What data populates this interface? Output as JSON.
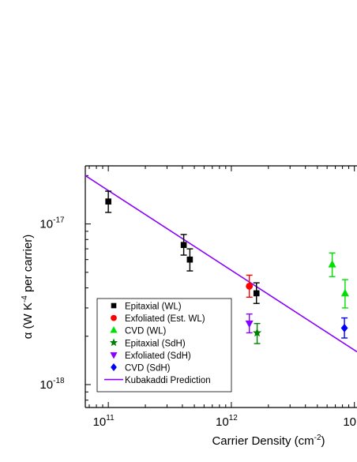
{
  "chart_data": {
    "type": "scatter",
    "xlabel": "Carrier Density (cm",
    "xlabel_sup": "-2",
    "xlabel_end": ")",
    "ylabel_pre": "α (W K",
    "ylabel_sup": "-4",
    "ylabel_post": " per carrier)",
    "x_scale": "log",
    "y_scale": "log",
    "xlim": [
      65000000000.0,
      10500000000000.0
    ],
    "ylim": [
      7.2e-19,
      2.3e-17
    ],
    "x_ticks": [
      {
        "value": 100000000000.0,
        "base": "10",
        "exp": "11"
      },
      {
        "value": 1000000000000.0,
        "base": "10",
        "exp": "12"
      },
      {
        "value": 10000000000000.0,
        "base": "10",
        "exp": ""
      }
    ],
    "y_ticks": [
      {
        "value": 1e-17,
        "base": "10",
        "exp": "-17"
      },
      {
        "value": 1e-18,
        "base": "10",
        "exp": "-18"
      }
    ],
    "grid": false,
    "legend_position": "bottom-left",
    "series": [
      {
        "name": "Epitaxial (WL)",
        "marker": "square",
        "color": "#000000",
        "points": [
          {
            "x": 100000000000.0,
            "y": 1.38e-17,
            "lo": 1.18e-17,
            "hi": 1.6e-17
          },
          {
            "x": 410000000000.0,
            "y": 7.4e-18,
            "lo": 6.4e-18,
            "hi": 8.6e-18
          },
          {
            "x": 460000000000.0,
            "y": 6e-18,
            "lo": 5.1e-18,
            "hi": 7e-18
          },
          {
            "x": 1600000000000.0,
            "y": 3.7e-18,
            "lo": 3.2e-18,
            "hi": 4.3e-18
          }
        ]
      },
      {
        "name": "Exfoliated (Est. WL)",
        "marker": "circle",
        "color": "#ff0000",
        "points": [
          {
            "x": 1400000000000.0,
            "y": 4.1e-18,
            "lo": 3.5e-18,
            "hi": 4.8e-18
          }
        ]
      },
      {
        "name": "CVD (WL)",
        "marker": "triangle-up",
        "color": "#00e000",
        "points": [
          {
            "x": 6600000000000.0,
            "y": 5.6e-18,
            "lo": 4.7e-18,
            "hi": 6.6e-18
          },
          {
            "x": 8400000000000.0,
            "y": 3.7e-18,
            "lo": 3e-18,
            "hi": 4.5e-18
          }
        ]
      },
      {
        "name": "Epitaxial (SdH)",
        "marker": "star",
        "color": "#008000",
        "points": [
          {
            "x": 1620000000000.0,
            "y": 2.1e-18,
            "lo": 1.8e-18,
            "hi": 2.4e-18
          }
        ]
      },
      {
        "name": "Exfoliated (SdH)",
        "marker": "triangle-down",
        "color": "#8a00ff",
        "points": [
          {
            "x": 1400000000000.0,
            "y": 2.4e-18,
            "lo": 2.1e-18,
            "hi": 2.75e-18
          }
        ]
      },
      {
        "name": "CVD (SdH)",
        "marker": "diamond",
        "color": "#0000ff",
        "points": [
          {
            "x": 8300000000000.0,
            "y": 2.25e-18,
            "lo": 1.95e-18,
            "hi": 2.6e-18
          }
        ]
      }
    ],
    "prediction": {
      "name": "Kubakaddi Prediction",
      "color": "#8a00ff",
      "x": [
        65000000000.0,
        10500000000000.0
      ],
      "y": [
        2e-17,
        1.6e-18
      ]
    }
  }
}
